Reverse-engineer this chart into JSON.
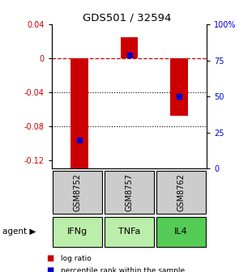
{
  "title": "GDS501 / 32594",
  "categories": [
    "GSM8752",
    "GSM8757",
    "GSM8762"
  ],
  "agents": [
    "IFNg",
    "TNFa",
    "IL4"
  ],
  "log_ratios": [
    -0.13,
    0.025,
    -0.068
  ],
  "percentile_ranks": [
    0.2,
    0.79,
    0.5
  ],
  "ylim_left": [
    -0.13,
    0.04
  ],
  "ylim_right": [
    0,
    1.0
  ],
  "left_yticks": [
    -0.12,
    -0.08,
    -0.04,
    0.0,
    0.04
  ],
  "right_yticks": [
    0,
    0.25,
    0.5,
    0.75,
    1.0
  ],
  "right_ytick_labels": [
    "0",
    "25",
    "50",
    "75",
    "100%"
  ],
  "bar_color": "#cc0000",
  "percentile_color": "#0000cc",
  "zero_line_color": "#cc0000",
  "grid_color": "#000000",
  "sample_box_color": "#cccccc",
  "agent_box_colors": [
    "#bbeeaa",
    "#bbeeaa",
    "#55cc55"
  ],
  "legend_log_ratio": "log ratio",
  "legend_percentile": "percentile rank within the sample",
  "figsize": [
    2.9,
    3.36
  ],
  "dpi": 100
}
